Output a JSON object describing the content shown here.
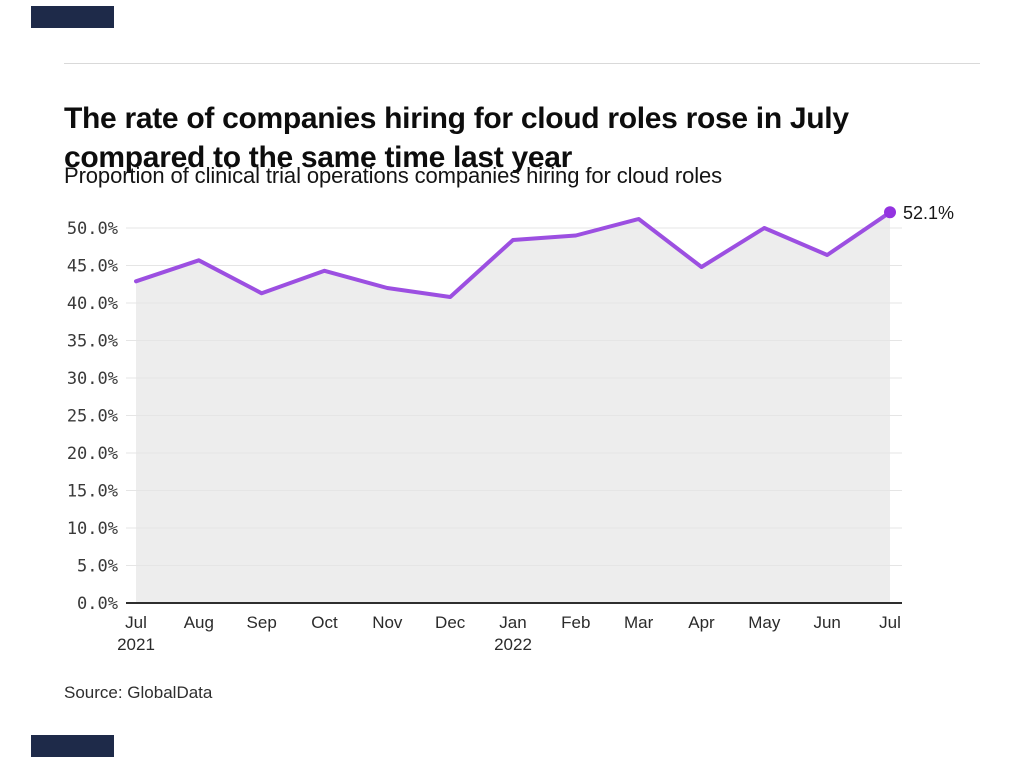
{
  "brand": {
    "accent_bar_color": "#1E2A49"
  },
  "source": {
    "text": "Source: GlobalData"
  },
  "chart_data": {
    "type": "line",
    "title_lines": [
      "The rate of companies hiring for cloud roles rose in July",
      "compared to the same time last year"
    ],
    "subtitle": "Proportion of clinical trial operations companies hiring for cloud roles",
    "x_ticks": [
      {
        "label": "Jul",
        "sublabel": "2021"
      },
      {
        "label": "Aug"
      },
      {
        "label": "Sep"
      },
      {
        "label": "Oct"
      },
      {
        "label": "Nov"
      },
      {
        "label": "Dec"
      },
      {
        "label": "Jan",
        "sublabel": "2022"
      },
      {
        "label": "Feb"
      },
      {
        "label": "Mar"
      },
      {
        "label": "Apr"
      },
      {
        "label": "May"
      },
      {
        "label": "Jun"
      },
      {
        "label": "Jul"
      }
    ],
    "values": [
      42.9,
      45.7,
      41.3,
      44.3,
      42.0,
      40.8,
      48.4,
      49.0,
      51.2,
      44.8,
      50.0,
      46.4,
      52.1
    ],
    "y_ticks": [
      {
        "value": 0,
        "label": "0.0%"
      },
      {
        "value": 5,
        "label": "5.0%"
      },
      {
        "value": 10,
        "label": "10.0%"
      },
      {
        "value": 15,
        "label": "15.0%"
      },
      {
        "value": 20,
        "label": "20.0%"
      },
      {
        "value": 25,
        "label": "25.0%"
      },
      {
        "value": 30,
        "label": "30.0%"
      },
      {
        "value": 35,
        "label": "35.0%"
      },
      {
        "value": 40,
        "label": "40.0%"
      },
      {
        "value": 45,
        "label": "45.0%"
      },
      {
        "value": 50,
        "label": "50.0%"
      }
    ],
    "ylim": [
      0,
      50
    ],
    "grid": true,
    "legend": "none",
    "end_annotation": "52.1%",
    "colors": {
      "line": "#9C4FE1",
      "marker": "#9333E0",
      "area_fill": "#EDEDED",
      "gridline": "#E5E5E5",
      "axis": "#2E2E2E"
    }
  }
}
